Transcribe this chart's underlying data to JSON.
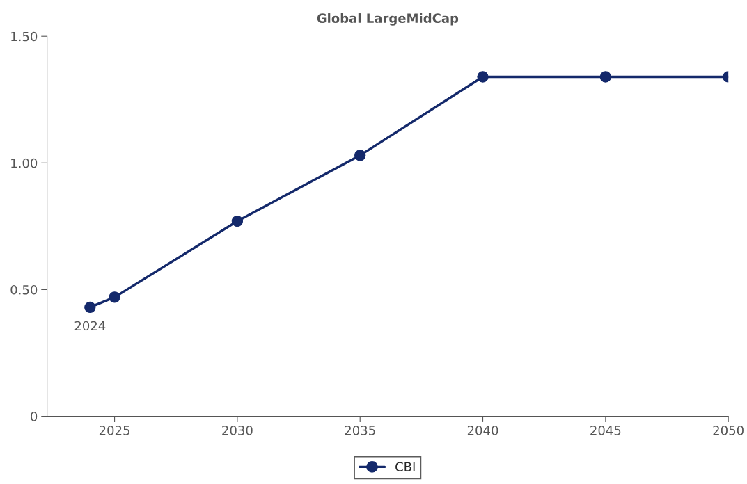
{
  "chart_data": {
    "type": "line",
    "title": "Global LargeMidCap",
    "x": [
      2024,
      2025,
      2030,
      2035,
      2040,
      2045,
      2050
    ],
    "series": [
      {
        "name": "CBI",
        "color": "#14296b",
        "values": [
          0.43,
          0.47,
          0.77,
          1.03,
          1.34,
          1.34,
          1.34
        ]
      }
    ],
    "xlim": [
      2022.25,
      2050
    ],
    "xticks": [
      2025,
      2030,
      2035,
      2040,
      2045,
      2050
    ],
    "ylim": [
      0,
      1.5
    ],
    "yticks": [
      {
        "value": 0,
        "label": "0"
      },
      {
        "value": 0.5,
        "label": "0.50"
      },
      {
        "value": 1,
        "label": "1.00"
      },
      {
        "value": 1.5,
        "label": "1.50"
      }
    ],
    "annotations": [
      {
        "text": "2024",
        "x": 2024,
        "y": 0.43
      }
    ],
    "marker": "circle",
    "line_style": "solid",
    "grid": false,
    "legend": "bottom"
  }
}
